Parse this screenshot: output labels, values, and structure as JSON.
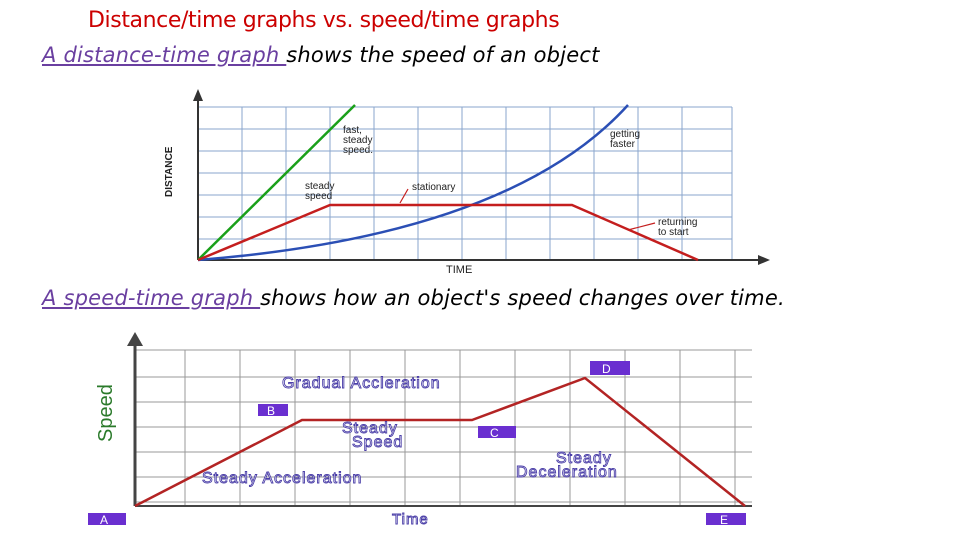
{
  "slide": {
    "title": "Distance/time graphs vs. speed/time graphs",
    "caption1": {
      "link": "A distance-time graph ",
      "rest": "shows the speed of an object"
    },
    "caption2": {
      "link": "A speed-time graph ",
      "rest": "shows how an object's speed changes over time."
    }
  },
  "distance_graph": {
    "y_axis_label": "DISTANCE",
    "x_axis_label": "TIME",
    "labels": {
      "fast_steady_line1": "fast,",
      "fast_steady_line2": "steady",
      "fast_steady_line3": "speed.",
      "getting_faster_line1": "getting",
      "getting_faster_line2": "faster",
      "steady_speed_line1": "steady",
      "steady_speed_line2": "speed",
      "stationary": "stationary",
      "returning_line1": "returning",
      "returning_line2": "to start"
    },
    "colors": {
      "fast": "#1aa01a",
      "getting_faster": "#2b4fb5",
      "steady": "#c41e1e",
      "grid": "#8aa6cc"
    }
  },
  "speed_graph": {
    "y_axis_label": "Speed",
    "x_axis_label": "Time",
    "labels": {
      "gradual_acceleration": "Gradual Accleration",
      "steady_speed_line1": "Steady",
      "steady_speed_line2": "Speed",
      "steady_acceleration": "Steady Acceleration",
      "steady_deceleration_line1": "Steady",
      "steady_deceleration_line2": "Deceleration"
    },
    "points": {
      "A": "A",
      "B": "B",
      "C": "C",
      "D": "D",
      "E": "E"
    },
    "colors": {
      "line": "#b32424",
      "grid": "#999999",
      "label_box": "#6a2fd0",
      "label_text": "#4b3fa8",
      "y_label": "#2a7a2a"
    }
  }
}
